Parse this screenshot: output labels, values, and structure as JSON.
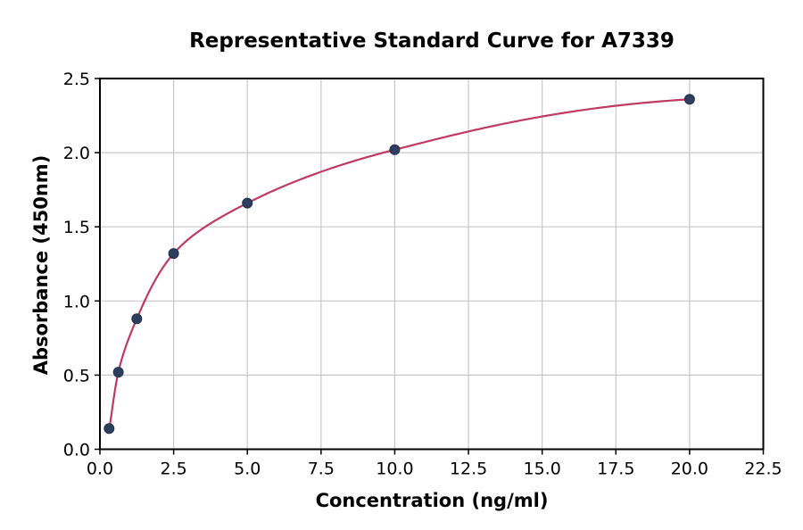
{
  "chart_data": {
    "type": "scatter",
    "title": "Representative Standard Curve for A7339",
    "xlabel": "Concentration (ng/ml)",
    "ylabel": "Absorbance (450nm)",
    "xlim": [
      0,
      22.5
    ],
    "ylim": [
      0,
      2.5
    ],
    "grid": true,
    "legend": "none",
    "x_ticks": {
      "values": [
        0,
        2.5,
        5,
        7.5,
        10,
        12.5,
        15,
        17.5,
        20,
        22.5
      ],
      "labels": [
        "0.0",
        "2.5",
        "5.0",
        "7.5",
        "10.0",
        "12.5",
        "15.0",
        "17.5",
        "20.0",
        "22.5"
      ]
    },
    "y_ticks": {
      "values": [
        0,
        0.5,
        1,
        1.5,
        2,
        2.5
      ],
      "labels": [
        "0.0",
        "0.5",
        "1.0",
        "1.5",
        "2.0",
        "2.5"
      ]
    },
    "series": [
      {
        "name": "standard-points",
        "type": "scatter",
        "x": [
          0.3125,
          0.625,
          1.25,
          2.5,
          5,
          10,
          20
        ],
        "y": [
          0.14,
          0.52,
          0.88,
          1.32,
          1.66,
          2.02,
          2.36
        ]
      },
      {
        "name": "fitted-curve",
        "type": "line",
        "interpolation": "smooth-through-points-log2x"
      }
    ],
    "colors": {
      "curve": "#c03a62",
      "marker": "#2d3e5f",
      "marker_edge": "#22304d",
      "grid": "#c8c8c8",
      "axis": "#000000",
      "background": "#ffffff"
    }
  }
}
